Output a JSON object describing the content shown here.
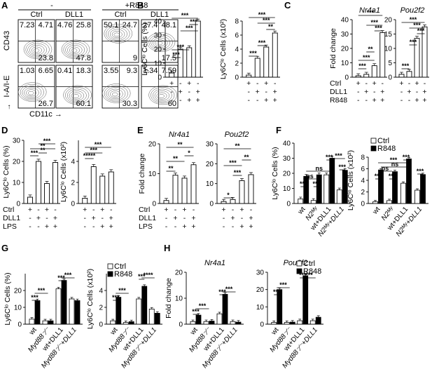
{
  "labels": {
    "panel_letters": [
      "A",
      "B",
      "C",
      "D",
      "E",
      "F",
      "G",
      "H"
    ],
    "ns": "ns",
    "legend_ctrl": "Ctrl",
    "legend_r848": "R848",
    "row_ctrl": "Ctrl",
    "row_dll1": "DLL1",
    "row_r848": "R848",
    "row_lps": "LPS",
    "pm": [
      "+",
      "-"
    ]
  },
  "panel_a": {
    "header_minus": "-",
    "header_plus": "+R848",
    "col_labels": [
      "Ctrl",
      "DLL1",
      "Ctrl",
      "DLL1"
    ],
    "y_top": "CD43",
    "y_bottom": "I-A/I-E",
    "x_label": "CD11c",
    "top_values": [
      [
        "7.23",
        "4.71",
        "23.8"
      ],
      [
        "4.76",
        "25.8",
        "47.8"
      ],
      [
        "50.1",
        "24.7",
        "9"
      ],
      [
        "27.4",
        "48.1",
        "17.5"
      ]
    ],
    "bottom_values": [
      [
        "1.03",
        "6.65",
        "26.7"
      ],
      [
        "0.41",
        "18.3",
        "60.1"
      ],
      [
        "3.55",
        "9.3",
        "30.3"
      ],
      [
        "1.34",
        "7.59",
        "60"
      ]
    ]
  },
  "chart_data": [
    {
      "panel": "B",
      "type": "bar",
      "ylabel": "Ly6Cˡᵒ Cells (%)",
      "ylim": [
        0,
        40
      ],
      "yticks": [
        "0",
        "10",
        "20",
        "30",
        "40"
      ],
      "values": [
        3,
        20,
        21,
        40
      ]
    },
    {
      "panel": "B",
      "type": "bar",
      "ylabel": "Ly6Cˡᵒ Cells (x10²)",
      "ylim": [
        0,
        8
      ],
      "yticks": [
        "0",
        "2",
        "4",
        "6",
        "8"
      ],
      "values": [
        0.3,
        2.7,
        4.3,
        6.3
      ]
    },
    {
      "panel": "C",
      "type": "bar",
      "title": "Nr4a1",
      "ylabel": "Fold change",
      "ylim": [
        0,
        40
      ],
      "yticks": [
        "0",
        "10",
        "20",
        "30",
        "40"
      ],
      "values": [
        1,
        2,
        8,
        31
      ]
    },
    {
      "panel": "C",
      "type": "bar",
      "title": "Pou2f2",
      "ylim": [
        0,
        20
      ],
      "yticks": [
        "0",
        "5",
        "10",
        "15",
        "20"
      ],
      "values": [
        1,
        2,
        13.5,
        17.5
      ]
    },
    {
      "panel": "D",
      "type": "bar",
      "ylabel": "Ly6Cˡᵒ Cells (%)",
      "ylim": [
        0,
        30
      ],
      "yticks": [
        "0",
        "10",
        "20",
        "30"
      ],
      "values": [
        3,
        20,
        9.5,
        19.5
      ]
    },
    {
      "panel": "D",
      "type": "bar",
      "ylabel": "Ly6Cˡᵒ Cells (x10²)",
      "ylim": [
        0,
        6
      ],
      "yticks": [
        "0",
        "2",
        "4"
      ],
      "values": [
        0.5,
        3.5,
        2.6,
        3
      ]
    },
    {
      "panel": "E",
      "type": "bar",
      "title": "Nr4a1",
      "ylabel": "Fold change",
      "ylim": [
        0,
        20
      ],
      "yticks": [
        "0",
        "10",
        "20"
      ],
      "values": [
        1,
        9.5,
        8.5,
        13
      ]
    },
    {
      "panel": "E",
      "type": "bar",
      "title": "Pou2f2",
      "ylim": [
        0,
        30
      ],
      "yticks": [
        "0",
        "10",
        "20",
        "30"
      ],
      "values": [
        1,
        2,
        11.5,
        14.5
      ]
    },
    {
      "panel": "F",
      "type": "bar",
      "ylabel": "Ly6Cˡᵒ Cells (%)",
      "ylim": [
        0,
        40
      ],
      "yticks": [
        "0",
        "10",
        "20",
        "30",
        "40"
      ],
      "categories": [
        "wt",
        "N2ᴹʸ",
        "wt+DLL1",
        "N2ᴹʸ+DLL1"
      ],
      "series": [
        {
          "name": "Ctrl",
          "values": [
            3,
            2,
            19,
            9
          ]
        },
        {
          "name": "R848",
          "values": [
            18,
            19,
            30,
            22
          ]
        }
      ]
    },
    {
      "panel": "F",
      "type": "bar",
      "ylabel": "Ly6Cˡᵒ Cells (x10²)",
      "ylim": [
        0,
        8
      ],
      "yticks": [
        "0",
        "2",
        "4",
        "6",
        "8"
      ],
      "categories": [
        "wt",
        "N2ᴹʸ",
        "wt+DLL1",
        "N2ᴹʸ+DLL1"
      ],
      "series": [
        {
          "name": "Ctrl",
          "values": [
            0.3,
            0.5,
            3.5,
            2.3
          ]
        },
        {
          "name": "R848",
          "values": [
            5.8,
            5.5,
            7.7,
            5
          ]
        }
      ]
    },
    {
      "panel": "G",
      "type": "bar",
      "ylabel": "Ly6Cˡᵒ Cells (%)",
      "ylim": [
        0,
        30
      ],
      "yticks": [
        "0",
        "10",
        "20"
      ],
      "categories": [
        "wt",
        "Myd88⁻⁄⁻",
        "wt+DLL1",
        "Myd88⁻⁄⁻+DLL1"
      ],
      "series": [
        {
          "name": "Ctrl",
          "values": [
            3,
            2,
            21,
            15
          ]
        },
        {
          "name": "R848",
          "values": [
            14,
            2,
            26,
            14
          ]
        }
      ]
    },
    {
      "panel": "G",
      "type": "bar",
      "ylabel": "Ly6Cˡᵒ Cells (x10²)",
      "ylim": [
        0,
        6
      ],
      "yticks": [
        "0",
        "2",
        "4"
      ],
      "categories": [
        "wt",
        "Myd88⁻⁄⁻",
        "wt+DLL1",
        "Myd88⁻⁄⁻+DLL1"
      ],
      "series": [
        {
          "name": "Ctrl",
          "values": [
            0.4,
            0.2,
            3,
            1.8
          ]
        },
        {
          "name": "R848",
          "values": [
            3.2,
            0.3,
            4.5,
            1.3
          ]
        }
      ]
    },
    {
      "panel": "H",
      "type": "bar",
      "title": "Nr4a1",
      "ylabel": "Fold change",
      "ylim": [
        0,
        20
      ],
      "yticks": [
        "0",
        "10",
        "20"
      ],
      "categories": [
        "wt",
        "Myd88⁻⁄⁻",
        "wt+DLL1",
        "Myd88⁻⁄⁻+DLL1"
      ],
      "series": [
        {
          "name": "Ctrl",
          "values": [
            1,
            1,
            4,
            1
          ]
        },
        {
          "name": "R848",
          "values": [
            3.5,
            1.2,
            11.5,
            0.8
          ]
        }
      ]
    },
    {
      "panel": "H",
      "type": "bar",
      "title": "Pou2f2",
      "ylim": [
        0,
        30
      ],
      "yticks": [
        "0",
        "10",
        "20",
        "30"
      ],
      "categories": [
        "wt",
        "Myd88⁻⁄⁻",
        "wt+DLL1",
        "Myd88⁻⁄⁻+DLL1"
      ],
      "series": [
        {
          "name": "Ctrl",
          "values": [
            1,
            1,
            2,
            2
          ]
        },
        {
          "name": "R848",
          "values": [
            20,
            1.2,
            28,
            4
          ]
        }
      ]
    }
  ]
}
